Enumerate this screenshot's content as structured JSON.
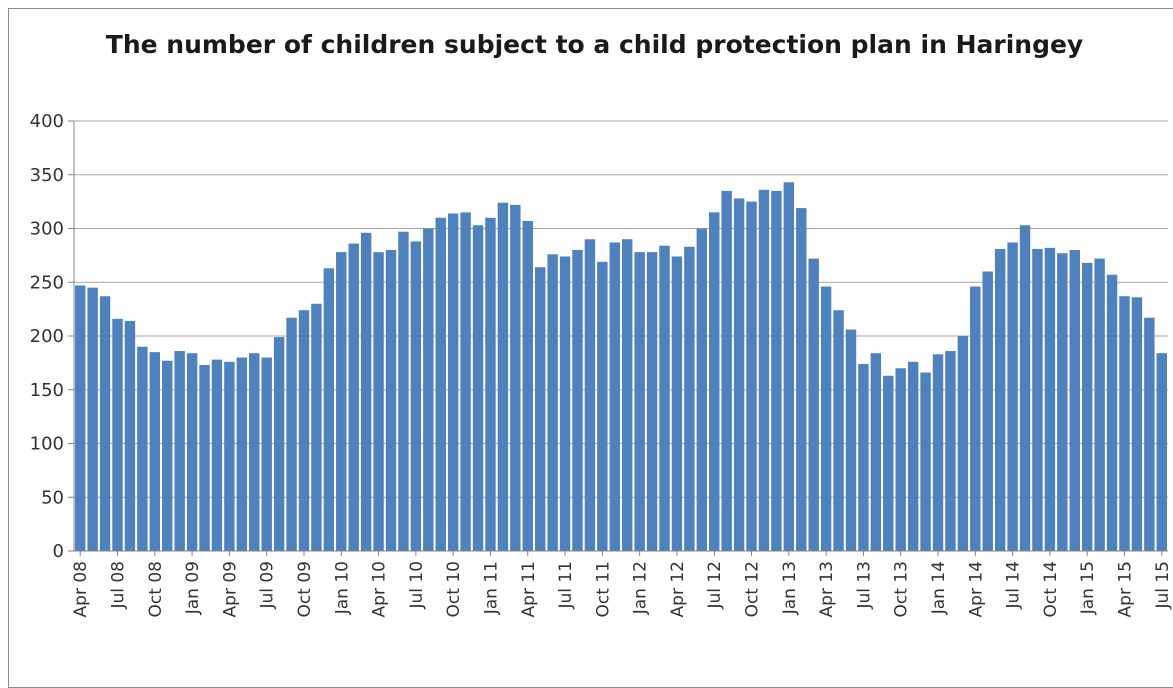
{
  "chart_data": {
    "type": "bar",
    "title": "The number of children subject to a child protection plan in Haringey",
    "xlabel": "",
    "ylabel": "",
    "ylim": [
      0,
      400
    ],
    "yticks": [
      0,
      50,
      100,
      150,
      200,
      250,
      300,
      350,
      400
    ],
    "grid": true,
    "legend": "none",
    "bar_color": "#4f81bd",
    "categories": [
      "Apr 08",
      "May 08",
      "Jun 08",
      "Jul 08",
      "Aug 08",
      "Sep 08",
      "Oct 08",
      "Nov 08",
      "Dec 08",
      "Jan 09",
      "Feb 09",
      "Mar 09",
      "Apr 09",
      "May 09",
      "Jun 09",
      "Jul 09",
      "Aug 09",
      "Sep 09",
      "Oct 09",
      "Nov 09",
      "Dec 09",
      "Jan 10",
      "Feb 10",
      "Mar 10",
      "Apr 10",
      "May 10",
      "Jun 10",
      "Jul 10",
      "Aug 10",
      "Sep 10",
      "Oct 10",
      "Nov 10",
      "Dec 10",
      "Jan 11",
      "Feb 11",
      "Mar 11",
      "Apr 11",
      "May 11",
      "Jun 11",
      "Jul 11",
      "Aug 11",
      "Sep 11",
      "Oct 11",
      "Nov 11",
      "Dec 11",
      "Jan 12",
      "Feb 12",
      "Mar 12",
      "Apr 12",
      "May 12",
      "Jun 12",
      "Jul 12",
      "Aug 12",
      "Sep 12",
      "Oct 12",
      "Nov 12",
      "Dec 12",
      "Jan 13",
      "Feb 13",
      "Mar 13",
      "Apr 13",
      "May 13",
      "Jun 13",
      "Jul 13",
      "Aug 13",
      "Sep 13",
      "Oct 13",
      "Nov 13",
      "Dec 13",
      "Jan 14",
      "Feb 14",
      "Mar 14",
      "Apr 14",
      "May 14",
      "Jun 14",
      "Jul 14",
      "Aug 14",
      "Sep 14",
      "Oct 14",
      "Nov 14",
      "Dec 14",
      "Jan 15",
      "Feb 15",
      "Mar 15",
      "Apr 15",
      "May 15",
      "Jun 15",
      "Jul 15"
    ],
    "tick_labels": [
      "Apr 08",
      "Jul 08",
      "Oct 08",
      "Jan 09",
      "Apr 09",
      "Jul 09",
      "Oct 09",
      "Jan 10",
      "Apr 10",
      "Jul 10",
      "Oct 10",
      "Jan 11",
      "Apr 11",
      "Jul 11",
      "Oct 11",
      "Jan 12",
      "Apr 12",
      "Jul 12",
      "Oct 12",
      "Jan 13",
      "Apr 13",
      "Jul 13",
      "Oct 13",
      "Jan 14",
      "Apr 14",
      "Jul 14",
      "Oct 14",
      "Jan 15",
      "Apr 15",
      "Jul 15"
    ],
    "series": [
      {
        "values": [
          247,
          245,
          237,
          216,
          214,
          190,
          185,
          177,
          186,
          184,
          173,
          178,
          176,
          180,
          184,
          180,
          199,
          217,
          224,
          230,
          263,
          278,
          286,
          296,
          278,
          280,
          297,
          288,
          300,
          310,
          314,
          315,
          303,
          310,
          324,
          322,
          307,
          264,
          276,
          274,
          280,
          290,
          269,
          287,
          290,
          278,
          278,
          284,
          274,
          283,
          300,
          315,
          335,
          328,
          325,
          336,
          335,
          343,
          319,
          272,
          246,
          224,
          206,
          174,
          184,
          163,
          170,
          176,
          166,
          183,
          186,
          200,
          246,
          260,
          281,
          287,
          303,
          281,
          282,
          277,
          280,
          268,
          272,
          257,
          237,
          236,
          217,
          184
        ]
      }
    ]
  }
}
